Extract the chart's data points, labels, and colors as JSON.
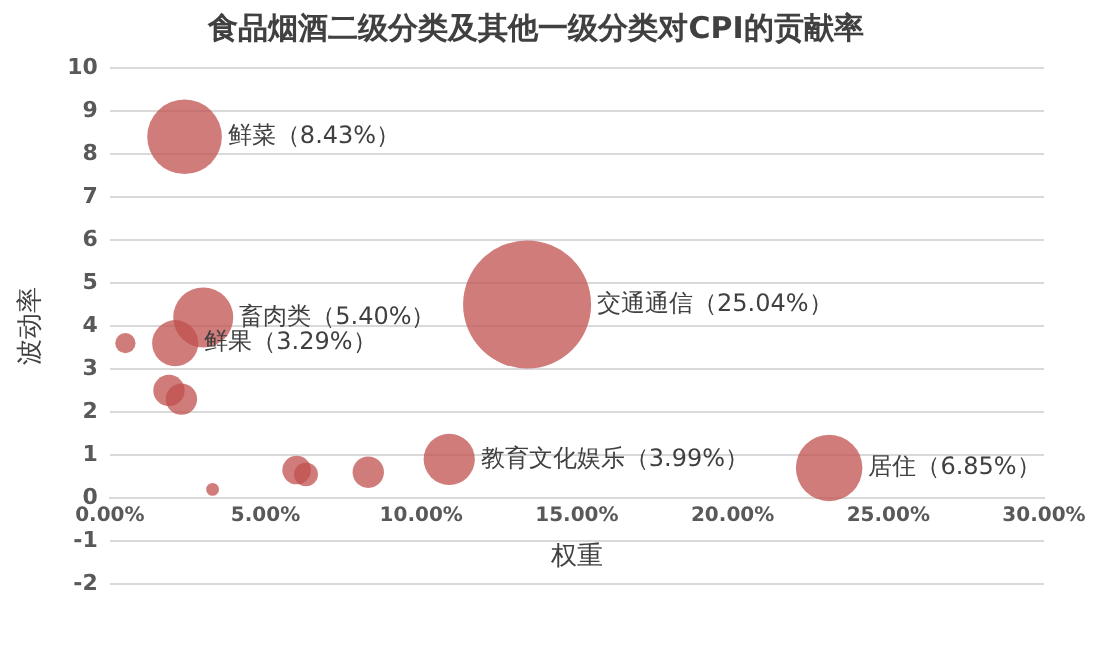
{
  "chart_data": {
    "type": "bubble",
    "title": "食品烟酒二级分类及其他一级分类对CPI的贡献率",
    "xlabel": "权重",
    "ylabel": "波动率",
    "x": [
      2.4,
      3.0,
      2.1,
      0.5,
      1.9,
      2.3,
      3.3,
      6.0,
      6.3,
      8.3,
      10.9,
      13.4,
      23.1
    ],
    "values": [
      8.4,
      4.2,
      3.6,
      3.6,
      2.5,
      2.3,
      0.2,
      0.65,
      0.55,
      0.6,
      0.9,
      4.5,
      0.7
    ],
    "sizes": [
      0.34,
      0.22,
      0.13,
      0.025,
      0.06,
      0.06,
      0.01,
      0.05,
      0.035,
      0.06,
      0.16,
      1,
      0.27
    ],
    "annotations": [
      {
        "text": "鲜菜（8.43%）",
        "x": 2.4,
        "y": 8.4
      },
      {
        "text": "畜肉类（5.40%）",
        "x": 3.0,
        "y": 4.2
      },
      {
        "text": "鲜果（3.29%）",
        "x": 2.1,
        "y": 3.6
      },
      {
        "text": "教育文化娱乐（3.99%）",
        "x": 10.9,
        "y": 0.9
      },
      {
        "text": "交通通信（25.04%）",
        "x": 13.4,
        "y": 4.5
      },
      {
        "text": "居住（6.85%）",
        "x": 23.1,
        "y": 0.7
      }
    ],
    "color": "#c0504d",
    "xlim": [
      0,
      30
    ],
    "xticks": [
      {
        "value": 0,
        "label": "0.00%"
      },
      {
        "value": 5,
        "label": "5.00%"
      },
      {
        "value": 10,
        "label": "10.00%"
      },
      {
        "value": 15,
        "label": "15.00%"
      },
      {
        "value": 20,
        "label": "20.00%"
      },
      {
        "value": 25,
        "label": "25.00%"
      },
      {
        "value": 30,
        "label": "30.00%"
      }
    ],
    "ylim": [
      -2,
      10
    ],
    "yticks": [
      -2,
      -1,
      0,
      1,
      2,
      3,
      4,
      5,
      6,
      7,
      8,
      9,
      10
    ],
    "grid": "y",
    "legend": false
  }
}
